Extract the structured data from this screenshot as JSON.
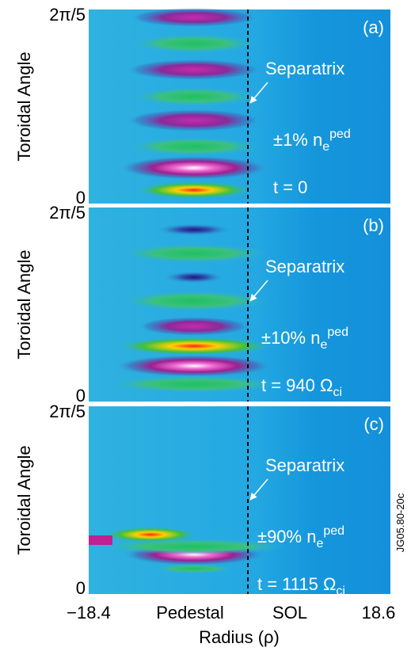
{
  "panels": [
    {
      "label": "(a)",
      "y_top": "2π/5",
      "y_bottom": "0",
      "y_axis_label": "Toroidal Angle",
      "separatrix": "Separatrix",
      "perturbation": {
        "text": "±1% n",
        "sub": "e",
        "sup": "ped"
      },
      "time": {
        "text": "t = 0"
      }
    },
    {
      "label": "(b)",
      "y_top": "2π/5",
      "y_bottom": "0",
      "y_axis_label": "Toroidal Angle",
      "separatrix": "Separatrix",
      "perturbation": {
        "text": "±10% n",
        "sub": "e",
        "sup": "ped"
      },
      "time": {
        "text": "t = 940 Ω",
        "sub": "ci"
      }
    },
    {
      "label": "(c)",
      "y_top": "2π/5",
      "y_bottom": "0",
      "y_axis_label": "Toroidal Angle",
      "separatrix": "Separatrix",
      "perturbation": {
        "text": "±90% n",
        "sub": "e",
        "sup": "ped"
      },
      "time": {
        "text": "t = 1115 Ω",
        "sub": "ci"
      }
    }
  ],
  "x_axis": {
    "left": "−18.4",
    "pedestal": "Pedestal",
    "sol": "SOL",
    "right": "18.6",
    "label": "Radius (ρ)"
  },
  "figure_id": "JG05.80-20c"
}
